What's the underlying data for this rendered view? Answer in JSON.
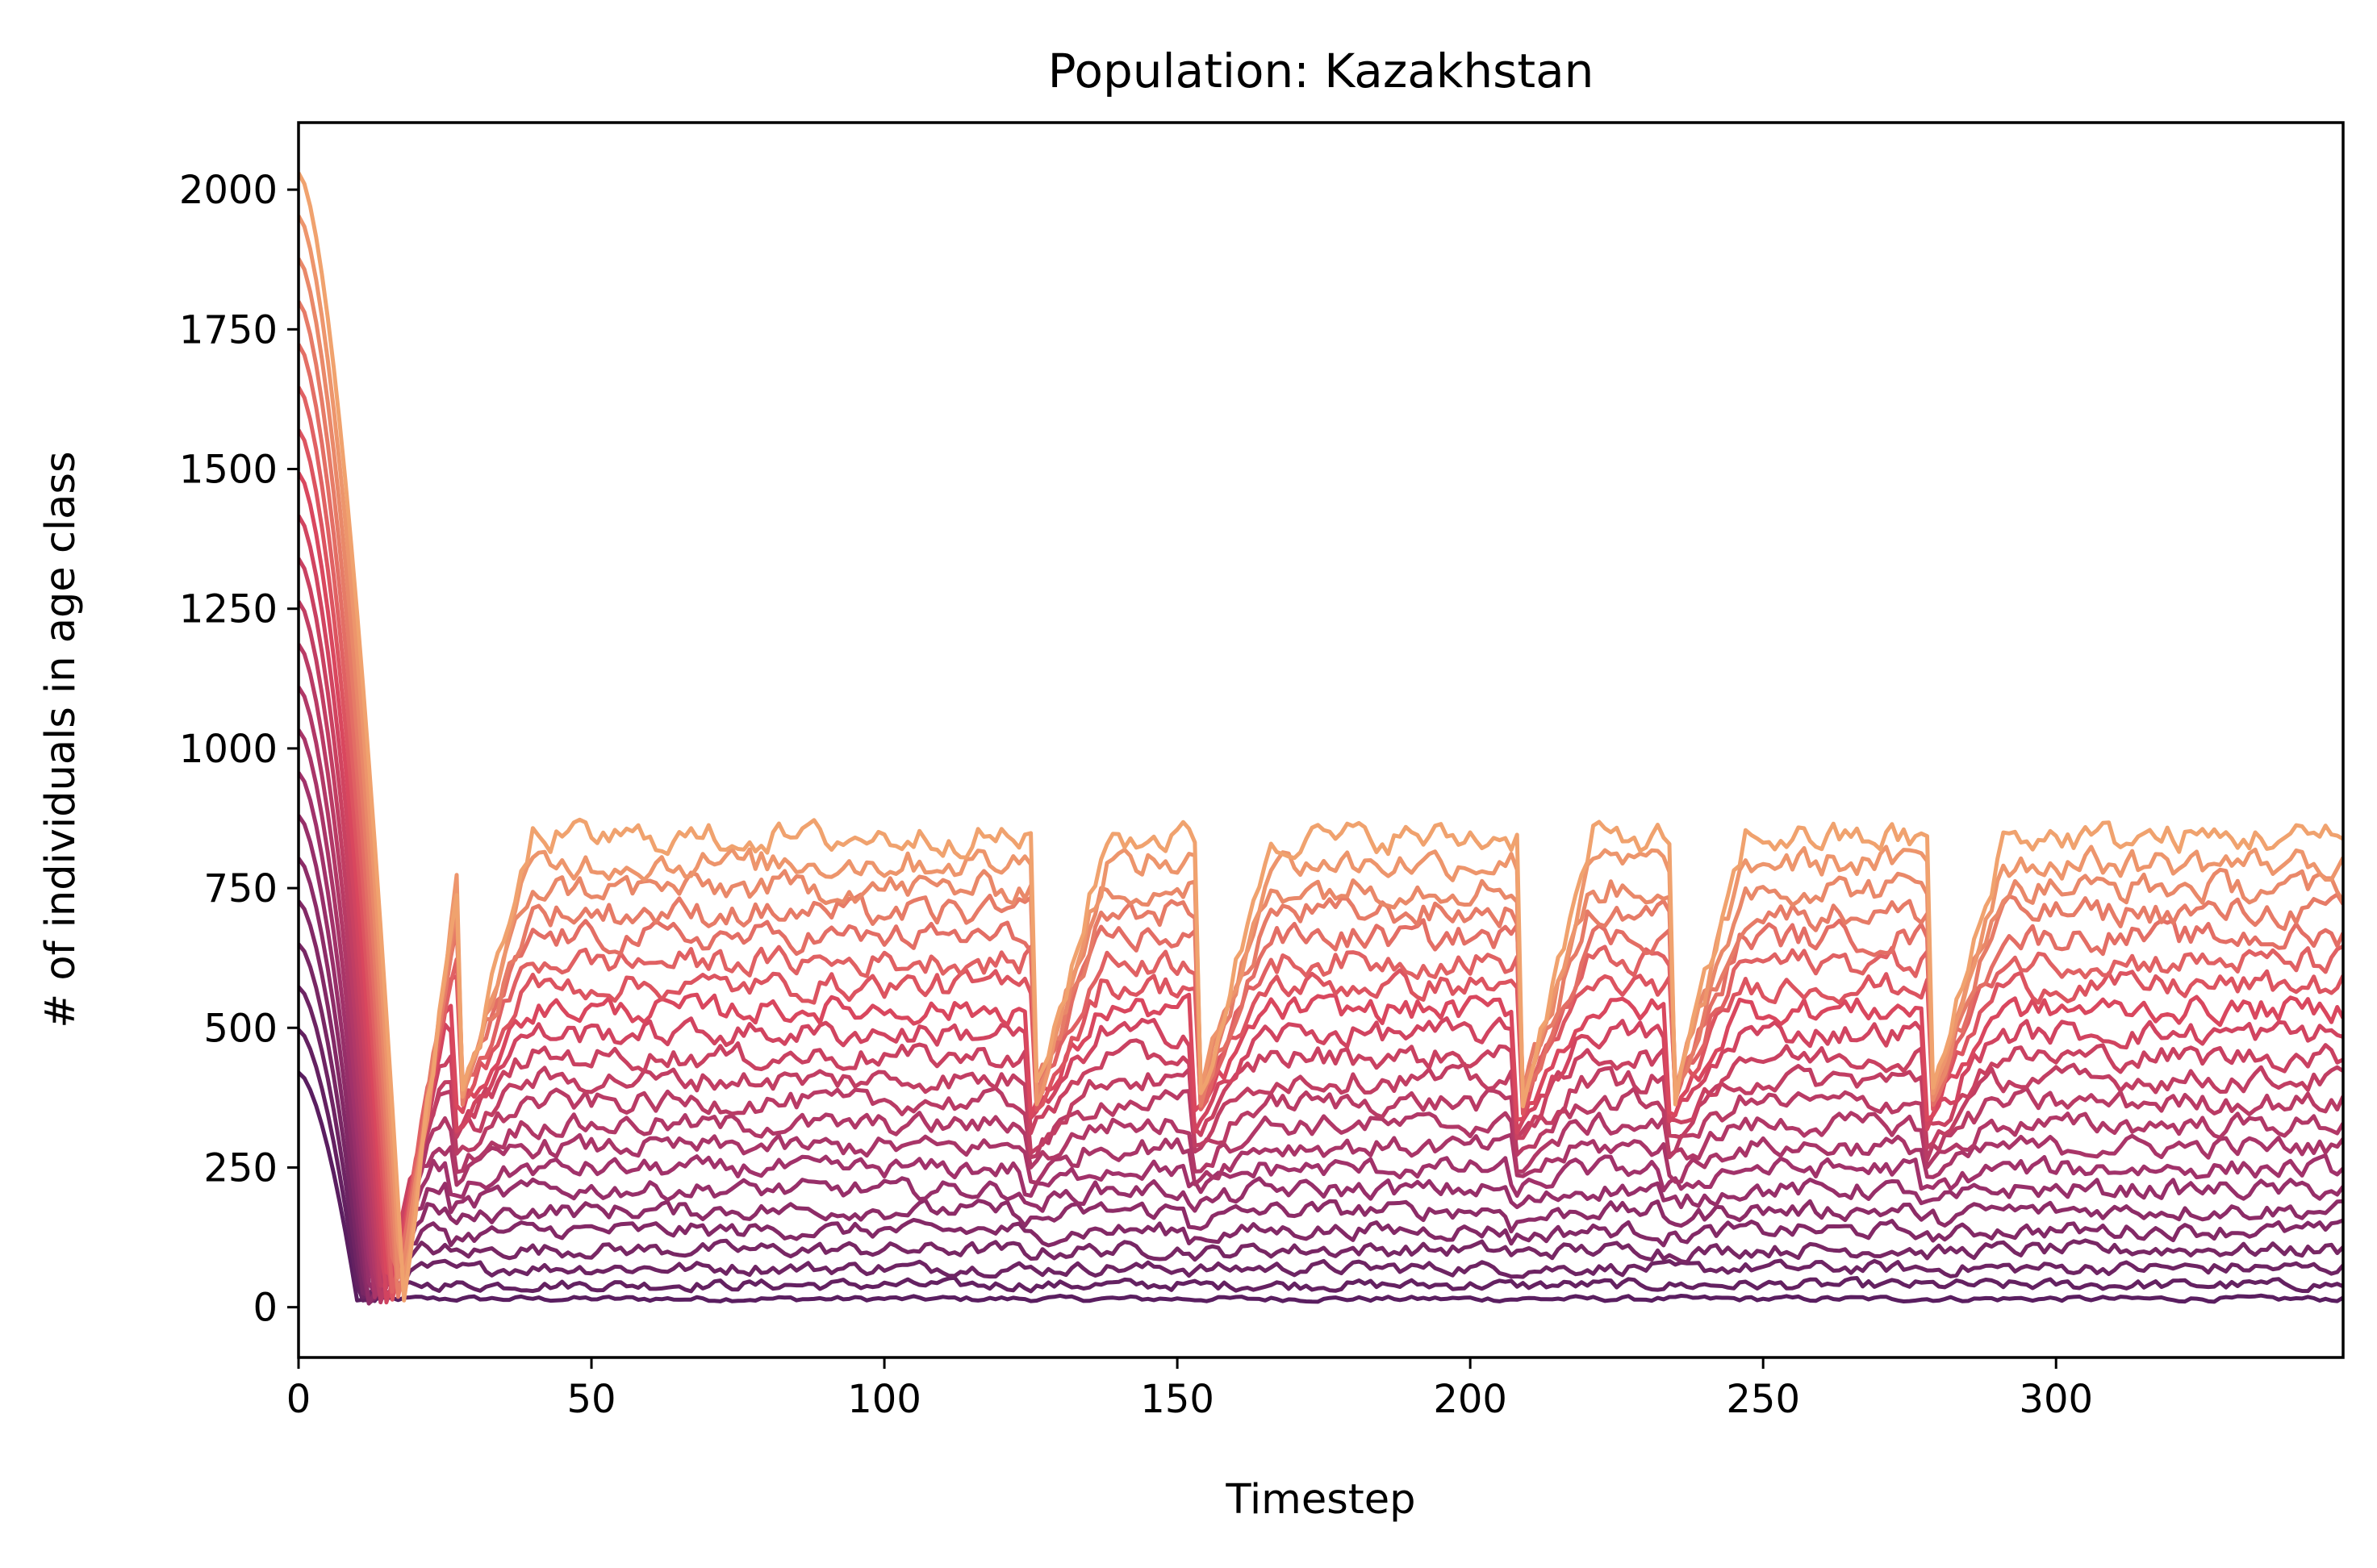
{
  "chart_data": {
    "type": "line",
    "title": "Population: Kazakhstan",
    "xlabel": "Timestep",
    "ylabel": "# of individuals in age class",
    "xlim": [
      0,
      349
    ],
    "ylim": [
      -90,
      2120
    ],
    "x_ticks": [
      0,
      50,
      100,
      150,
      200,
      250,
      300
    ],
    "x_tick_labels": [
      "0",
      "50",
      "100",
      "150",
      "200",
      "250",
      "300"
    ],
    "y_ticks": [
      0,
      250,
      500,
      750,
      1000,
      1250,
      1500,
      1750,
      2000
    ],
    "y_tick_labels": [
      "0",
      "250",
      "500",
      "750",
      "1000",
      "1250",
      "1500",
      "1750",
      "2000"
    ],
    "grid": false,
    "legend": "none",
    "colormap": "flare",
    "color_range": [
      "#5a1e60",
      "#f0a26e"
    ],
    "x_values": "0..349 step 1",
    "series_count": 22,
    "series_profile": {
      "initial_value_first_class": 420,
      "initial_value_last_class": 2030,
      "steady_level_first_class": 15,
      "steady_level_last_class": 840,
      "initial_decline_ends_at_timestep_range": [
        10,
        18
      ],
      "recurring_dip_timesteps": [
        25,
        123,
        151,
        206,
        232,
        276
      ]
    }
  }
}
